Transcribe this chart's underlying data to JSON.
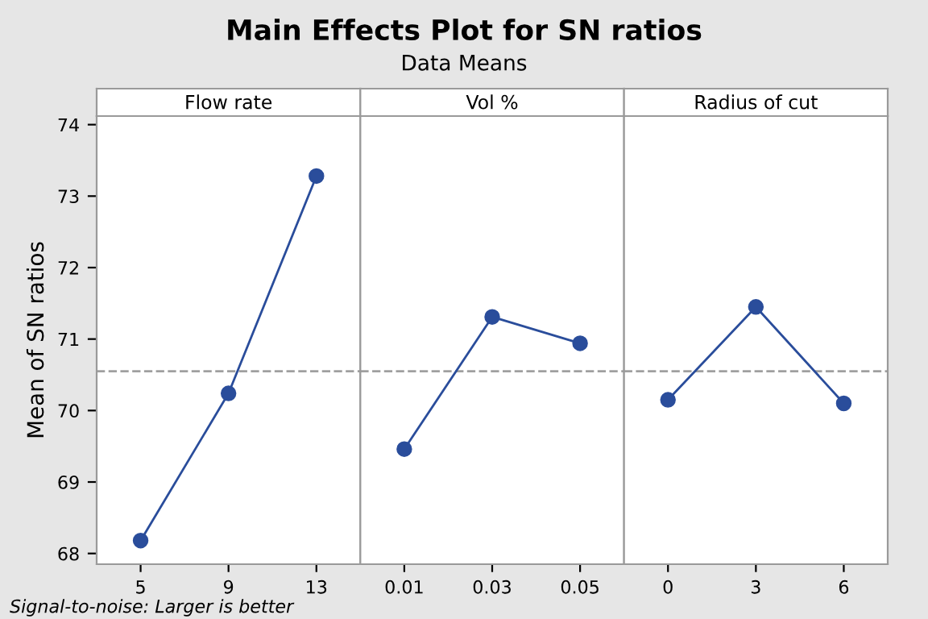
{
  "chart_data": [
    {
      "type": "line",
      "xlabel": "Flow rate",
      "ylabel": "Mean of SN ratios",
      "categories": [
        "5",
        "9",
        "13"
      ],
      "series": [
        {
          "color": "#2a4d9b",
          "values": [
            68.18,
            70.24,
            73.28
          ]
        }
      ],
      "marker": "circle",
      "line_style": "solid",
      "ylim": [
        67.85,
        74.12
      ],
      "yticks": [
        68,
        69,
        70,
        71,
        72,
        73,
        74
      ],
      "ref_lines": [
        {
          "axis": "y",
          "value": 70.55,
          "color": "#a0a0a0",
          "line_style": "dashed"
        }
      ],
      "grid": false,
      "legend": false,
      "annotations": [
        "Signal-to-noise: Larger is better"
      ]
    },
    {
      "type": "line",
      "title": "Main Effects Plot for SN ratios",
      "subtitle": "Data Means",
      "xlabel": "Vol %",
      "categories": [
        "0.01",
        "0.03",
        "0.05"
      ],
      "series": [
        {
          "color": "#2a4d9b",
          "values": [
            69.46,
            71.31,
            70.94
          ]
        }
      ],
      "marker": "circle",
      "line_style": "solid",
      "ylim": [
        67.85,
        74.12
      ],
      "tick_labels": "x",
      "ref_lines": [
        {
          "axis": "y",
          "value": 70.55,
          "color": "#a0a0a0",
          "line_style": "dashed"
        }
      ],
      "grid": false,
      "legend": false
    },
    {
      "type": "line",
      "xlabel": "Radius of cut",
      "categories": [
        "0",
        "3",
        "6"
      ],
      "series": [
        {
          "color": "#2a4d9b",
          "values": [
            70.15,
            71.45,
            70.1
          ]
        }
      ],
      "marker": "circle",
      "line_style": "solid",
      "ylim": [
        67.85,
        74.12
      ],
      "tick_labels": "x",
      "ref_lines": [
        {
          "axis": "y",
          "value": 70.55,
          "color": "#a0a0a0",
          "line_style": "dashed"
        }
      ],
      "grid": false,
      "legend": false
    }
  ]
}
